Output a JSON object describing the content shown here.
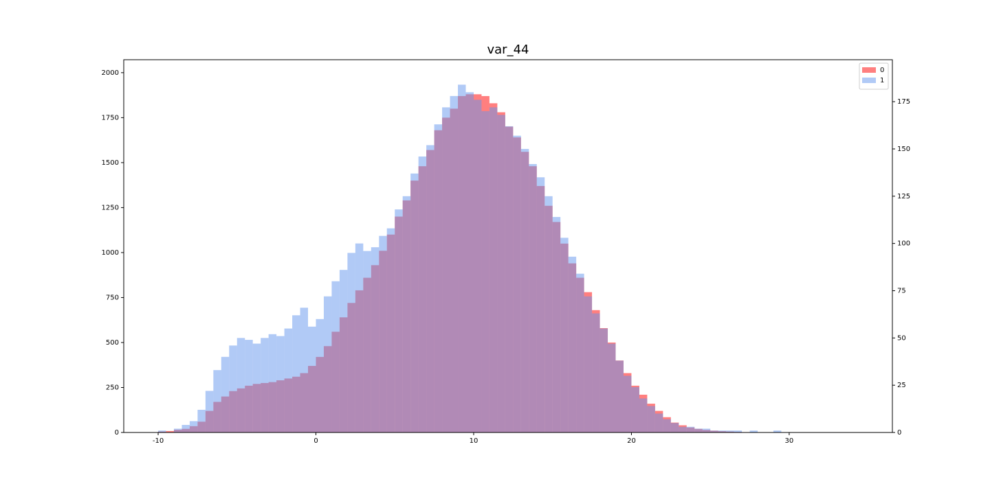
{
  "chart_data": {
    "type": "histogram",
    "title": "var_44",
    "bins": [
      -10,
      -9.5,
      -9,
      -8.5,
      -8,
      -7.5,
      -7,
      -6.5,
      -6,
      -5.5,
      -5,
      -4.5,
      -4,
      -3.5,
      -3,
      -2.5,
      -2,
      -1.5,
      -1,
      -0.5,
      0,
      0.5,
      1,
      1.5,
      2,
      2.5,
      3,
      3.5,
      4,
      4.5,
      5,
      5.5,
      6,
      6.5,
      7,
      7.5,
      8,
      8.5,
      9,
      9.5,
      10,
      10.5,
      11,
      11.5,
      12,
      12.5,
      13,
      13.5,
      14,
      14.5,
      15,
      15.5,
      16,
      16.5,
      17,
      17.5,
      18,
      18.5,
      19,
      19.5,
      20,
      20.5,
      21,
      21.5,
      22,
      22.5,
      23,
      23.5,
      24,
      24.5,
      25,
      25.5,
      26,
      26.5,
      27,
      27.5,
      28,
      28.5,
      29,
      29.5,
      30
    ],
    "series": [
      {
        "name": "0",
        "color": "#ff0000",
        "axis": "y",
        "values": [
          5,
          8,
          15,
          20,
          35,
          60,
          120,
          170,
          200,
          230,
          245,
          260,
          270,
          275,
          280,
          290,
          300,
          310,
          330,
          370,
          420,
          480,
          560,
          640,
          720,
          790,
          860,
          930,
          1010,
          1100,
          1200,
          1290,
          1400,
          1480,
          1570,
          1680,
          1750,
          1800,
          1870,
          1880,
          1880,
          1870,
          1830,
          1780,
          1700,
          1640,
          1560,
          1480,
          1370,
          1260,
          1170,
          1050,
          940,
          860,
          780,
          680,
          580,
          500,
          400,
          330,
          260,
          210,
          160,
          120,
          85,
          55,
          40,
          28,
          20,
          14,
          10,
          7,
          5,
          3,
          2,
          1,
          1,
          0,
          0,
          0
        ]
      },
      {
        "name": "1",
        "color": "#6495ed",
        "axis": "y2",
        "values": [
          1,
          0,
          2,
          4,
          6,
          12,
          22,
          33,
          40,
          46,
          50,
          49,
          47,
          50,
          52,
          51,
          55,
          62,
          66,
          56,
          60,
          72,
          80,
          86,
          95,
          100,
          96,
          98,
          104,
          108,
          118,
          125,
          137,
          146,
          152,
          163,
          172,
          178,
          184,
          180,
          176,
          170,
          172,
          168,
          162,
          157,
          150,
          142,
          135,
          125,
          114,
          103,
          93,
          84,
          72,
          63,
          55,
          47,
          38,
          30,
          24,
          18,
          14,
          10,
          7,
          5,
          3,
          3,
          2,
          2,
          1,
          1,
          1,
          1,
          0,
          1,
          0,
          0,
          1,
          0
        ]
      }
    ],
    "xlim": [
      -12.18,
      36.54
    ],
    "xticks": [
      -10,
      0,
      10,
      20,
      30
    ],
    "ylim": [
      0,
      2072
    ],
    "yticks": [
      0,
      250,
      500,
      750,
      1000,
      1250,
      1500,
      1750,
      2000
    ],
    "y2lim": [
      0,
      197.2
    ],
    "y2ticks": [
      0,
      25,
      50,
      75,
      100,
      125,
      150,
      175
    ],
    "legend": "upper right"
  }
}
